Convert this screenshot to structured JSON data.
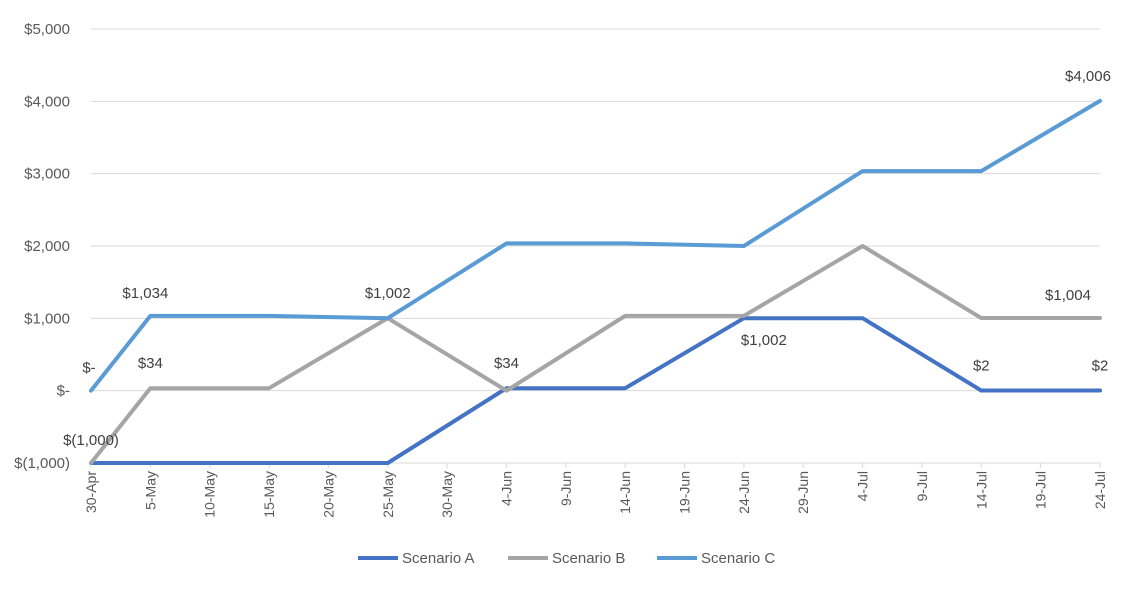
{
  "chart_data": {
    "type": "line",
    "title": "",
    "xlabel": "",
    "ylabel": "",
    "ylim": [
      -1000,
      5000
    ],
    "y_ticks": [
      5000,
      4000,
      3000,
      2000,
      1000,
      0,
      -1000
    ],
    "y_tick_labels": [
      "$5,000",
      "$4,000",
      "$3,000",
      "$2,000",
      "$1,000",
      "$-",
      "$(1,000)"
    ],
    "x_tick_labels": [
      "30-Apr",
      "5-May",
      "10-May",
      "15-May",
      "20-May",
      "25-May",
      "30-May",
      "4-Jun",
      "9-Jun",
      "14-Jun",
      "19-Jun",
      "24-Jun",
      "29-Jun",
      "4-Jul",
      "9-Jul",
      "14-Jul",
      "19-Jul",
      "24-Jul"
    ],
    "x": [
      "30-Apr",
      "5-May",
      "15-May",
      "25-May",
      "4-Jun",
      "14-Jun",
      "24-Jun",
      "4-Jul",
      "14-Jul",
      "24-Jul"
    ],
    "grid": true,
    "legend_position": "bottom",
    "series": [
      {
        "name": "Scenario A",
        "color": "#4472C4",
        "values": [
          -1000,
          -1000,
          -1000,
          -1000,
          34,
          34,
          1002,
          1002,
          2,
          2
        ]
      },
      {
        "name": "Scenario B",
        "color": "#A5A5A5",
        "values": [
          -1000,
          34,
          34,
          1002,
          0,
          1034,
          1034,
          2000,
          1004,
          1004
        ]
      },
      {
        "name": "Scenario C",
        "color": "#5B9BD5",
        "values": [
          0,
          1034,
          1034,
          1002,
          2036,
          2036,
          2000,
          3036,
          3036,
          4006
        ]
      }
    ],
    "data_labels": [
      {
        "text": "$-",
        "x": "30-Apr",
        "y": 0
      },
      {
        "text": "$(1,000)",
        "x": "30-Apr",
        "y": -1000
      },
      {
        "text": "$1,034",
        "x": "5-May",
        "y": 1034
      },
      {
        "text": "$34",
        "x": "5-May",
        "y": 34
      },
      {
        "text": "$1,002",
        "x": "25-May",
        "y": 1002
      },
      {
        "text": "$34",
        "x": "4-Jun",
        "y": 34
      },
      {
        "text": "$1,002",
        "x": "24-Jun",
        "y": 1002
      },
      {
        "text": "$2",
        "x": "14-Jul",
        "y": 2
      },
      {
        "text": "$4,006",
        "x": "24-Jul",
        "y": 4006
      },
      {
        "text": "$1,004",
        "x": "24-Jul",
        "y": 1004
      },
      {
        "text": "$2",
        "x": "24-Jul",
        "y": 2
      }
    ]
  }
}
